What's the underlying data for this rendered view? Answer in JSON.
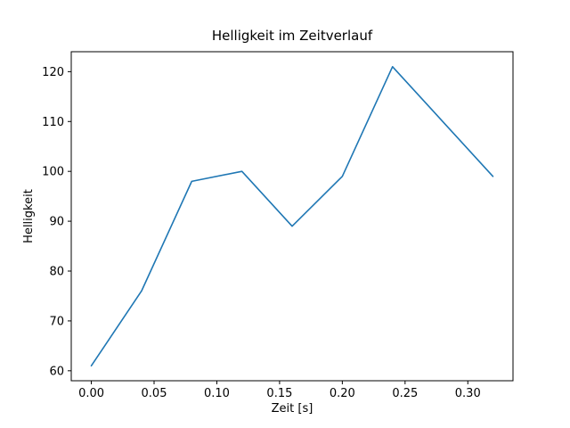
{
  "chart_data": {
    "type": "line",
    "title": "Helligkeit im Zeitverlauf",
    "xlabel": "Zeit [s]",
    "ylabel": "Helligkeit",
    "x": [
      0.0,
      0.04,
      0.08,
      0.12,
      0.16,
      0.2,
      0.24,
      0.28,
      0.32
    ],
    "y": [
      61,
      76,
      98,
      100,
      89,
      99,
      121,
      110,
      99
    ],
    "xlim": [
      -0.016,
      0.336
    ],
    "ylim": [
      58,
      124
    ],
    "xticks": {
      "values": [
        0.0,
        0.05,
        0.1,
        0.15,
        0.2,
        0.25,
        0.3
      ],
      "labels": [
        "0.00",
        "0.05",
        "0.10",
        "0.15",
        "0.20",
        "0.25",
        "0.30"
      ]
    },
    "yticks": {
      "values": [
        60,
        70,
        80,
        90,
        100,
        110,
        120
      ],
      "labels": [
        "60",
        "70",
        "80",
        "90",
        "100",
        "110",
        "120"
      ]
    },
    "line_color": "#1f77b4",
    "frame_color": "#000000",
    "background_color": "#ffffff",
    "grid": false,
    "legend_position": "none"
  }
}
